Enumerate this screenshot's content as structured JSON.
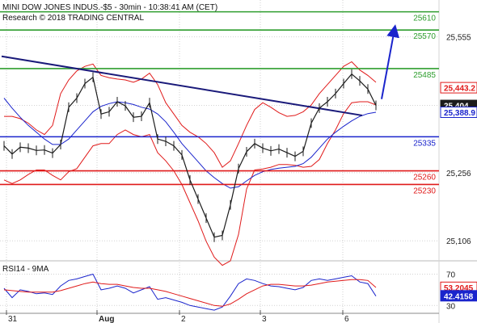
{
  "header": {
    "title": "MINI DOW JONES INDUS.-$5 - 30min - 10:38:41 AM (CET)",
    "copyright": "Research © 2018 TRADING CENTRAL"
  },
  "chart_data": [
    {
      "type": "line",
      "panel": "price",
      "x_ticks": [
        "31",
        "Aug",
        "2",
        "3",
        "6"
      ],
      "y_ticks": [
        25555,
        25404,
        25256,
        25106
      ],
      "ylim": [
        25062,
        25636
      ],
      "grid": true,
      "levels": [
        {
          "label": "25610",
          "value": 25610,
          "color": "#2e9e2e"
        },
        {
          "label": "25570",
          "value": 25570,
          "color": "#2e9e2e"
        },
        {
          "label": "25485",
          "value": 25485,
          "color": "#2e9e2e"
        },
        {
          "label": "25335",
          "value": 25335,
          "color": "#1a24cc"
        },
        {
          "label": "25260",
          "value": 25260,
          "color": "#e01a1a"
        },
        {
          "label": "25230",
          "value": 25230,
          "color": "#e01a1a"
        }
      ],
      "price_tags": [
        {
          "label": "25,443.2",
          "value": 25443,
          "fill": "#ffffff",
          "stroke": "#e01a1a",
          "text_color": "#e01a1a"
        },
        {
          "label": "25,404",
          "value": 25404,
          "fill": "#1c1c1c",
          "stroke": "#1c1c1c",
          "text_color": "#ffffff"
        },
        {
          "label": "25,388.9",
          "value": 25389,
          "fill": "#ffffff",
          "stroke": "#1a24cc",
          "text_color": "#1a24cc"
        }
      ],
      "trendline": {
        "x": [
          2,
          448
        ],
        "y": [
          25512,
          25382
        ],
        "color": "#1a1a7a"
      },
      "forecast_arrow": {
        "x": [
          472,
          488
        ],
        "y": [
          25418,
          25572
        ],
        "color": "#1a24cc"
      },
      "price_series": {
        "color": "#1c1c1c",
        "x": [
          5,
          15,
          25,
          35,
          45,
          55,
          65,
          75,
          85,
          95,
          105,
          115,
          125,
          135,
          145,
          155,
          165,
          175,
          185,
          195,
          205,
          215,
          225,
          235,
          245,
          255,
          265,
          275,
          285,
          295,
          305,
          315,
          325,
          335,
          345,
          355,
          365,
          375,
          385,
          395,
          405,
          415,
          425,
          435,
          445,
          455,
          465
        ],
        "y": [
          25315,
          25297,
          25312,
          25310,
          25305,
          25306,
          25299,
          25318,
          25400,
          25420,
          25452,
          25466,
          25385,
          25390,
          25412,
          25403,
          25378,
          25380,
          25410,
          25330,
          25325,
          25315,
          25295,
          25240,
          25198,
          25156,
          25114,
          25118,
          25185,
          25265,
          25302,
          25320,
          25310,
          25304,
          25308,
          25300,
          25292,
          25303,
          25365,
          25398,
          25412,
          25430,
          25452,
          25473,
          25458,
          25440,
          25404
        ]
      },
      "bollinger": {
        "color": "#e01a1a",
        "upper": [
          25380,
          25380,
          25375,
          25365,
          25350,
          25340,
          25360,
          25430,
          25460,
          25480,
          25490,
          25495,
          25470,
          25465,
          25462,
          25460,
          25455,
          25462,
          25475,
          25450,
          25410,
          25385,
          25360,
          25345,
          25335,
          25320,
          25300,
          25268,
          25282,
          25320,
          25360,
          25395,
          25410,
          25400,
          25388,
          25380,
          25382,
          25390,
          25405,
          25430,
          25450,
          25470,
          25490,
          25500,
          25482,
          25470,
          25455
        ],
        "lower": [
          25240,
          25232,
          25240,
          25252,
          25262,
          25262,
          25250,
          25240,
          25258,
          25265,
          25290,
          25315,
          25320,
          25320,
          25340,
          25350,
          25340,
          25335,
          25340,
          25300,
          25282,
          25260,
          25230,
          25190,
          25150,
          25105,
          25070,
          25052,
          25062,
          25120,
          25220,
          25262,
          25264,
          25268,
          25274,
          25274,
          25272,
          25268,
          25270,
          25285,
          25320,
          25350,
          25386,
          25410,
          25412,
          25412,
          25405
        ]
      },
      "moving_average": {
        "color": "#1a24cc",
        "values": [
          25420,
          25398,
          25378,
          25360,
          25345,
          25330,
          25318,
          25318,
          25330,
          25350,
          25370,
          25390,
          25402,
          25408,
          25412,
          25410,
          25406,
          25400,
          25396,
          25385,
          25368,
          25345,
          25320,
          25300,
          25280,
          25260,
          25245,
          25232,
          25222,
          25225,
          25238,
          25250,
          25258,
          25263,
          25266,
          25268,
          25270,
          25276,
          25290,
          25310,
          25330,
          25345,
          25358,
          25370,
          25380,
          25386,
          25389
        ]
      }
    },
    {
      "type": "line",
      "panel": "indicator",
      "title": "RSI14 - 9MA",
      "y_ticks": [
        70,
        30
      ],
      "ylim": [
        20,
        85
      ],
      "grid": true,
      "value_tags": [
        {
          "label": "53.2045",
          "value": 53.2,
          "fill": "#ffffff",
          "stroke": "#e01a1a",
          "text_color": "#e01a1a"
        },
        {
          "label": "42.4158",
          "value": 42.4,
          "fill": "#1a24cc",
          "stroke": "#1a24cc",
          "text_color": "#ffffff"
        }
      ],
      "series": [
        {
          "name": "RSI14",
          "color": "#1a24cc",
          "x": [
            5,
            15,
            25,
            35,
            45,
            55,
            65,
            75,
            85,
            95,
            105,
            115,
            125,
            135,
            145,
            155,
            165,
            175,
            185,
            195,
            205,
            215,
            225,
            235,
            245,
            255,
            265,
            275,
            285,
            295,
            305,
            315,
            325,
            335,
            345,
            355,
            365,
            375,
            385,
            395,
            405,
            415,
            425,
            435,
            445,
            455,
            465
          ],
          "values": [
            52,
            40,
            50,
            48,
            45,
            46,
            44,
            55,
            62,
            64,
            67,
            70,
            50,
            52,
            55,
            52,
            46,
            50,
            54,
            38,
            40,
            37,
            34,
            30,
            28,
            26,
            24,
            28,
            42,
            58,
            64,
            62,
            58,
            55,
            54,
            52,
            50,
            53,
            62,
            64,
            62,
            64,
            66,
            68,
            60,
            58,
            42
          ]
        },
        {
          "name": "9MA",
          "color": "#e01a1a",
          "x": [
            5,
            15,
            25,
            35,
            45,
            55,
            65,
            75,
            85,
            95,
            105,
            115,
            125,
            135,
            145,
            155,
            165,
            175,
            185,
            195,
            205,
            215,
            225,
            235,
            245,
            255,
            265,
            275,
            285,
            295,
            305,
            315,
            325,
            335,
            345,
            355,
            365,
            375,
            385,
            395,
            405,
            415,
            425,
            435,
            445,
            455,
            465
          ],
          "values": [
            50,
            49,
            48,
            47,
            47,
            47,
            47,
            49,
            52,
            55,
            58,
            60,
            58,
            57,
            57,
            55,
            53,
            52,
            52,
            50,
            48,
            45,
            42,
            39,
            36,
            33,
            30,
            29,
            32,
            38,
            45,
            50,
            55,
            57,
            57,
            56,
            55,
            55,
            56,
            58,
            60,
            61,
            62,
            63,
            63,
            62,
            53
          ]
        }
      ]
    }
  ]
}
